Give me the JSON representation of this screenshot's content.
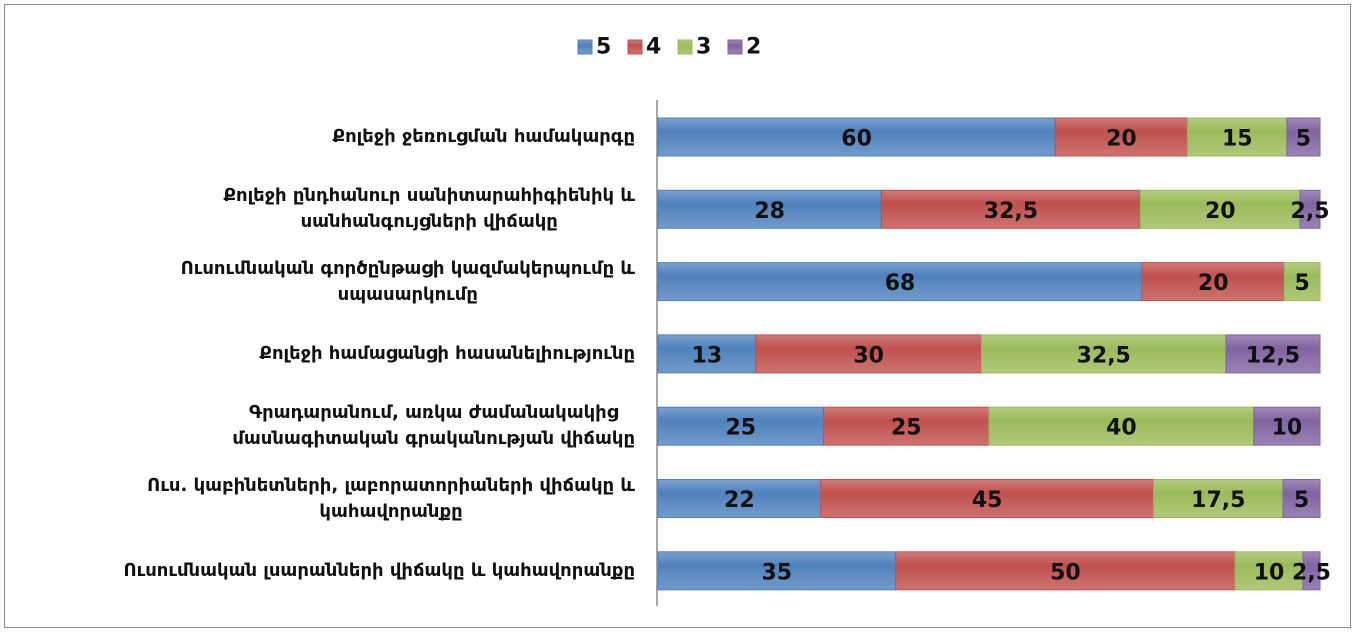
{
  "chart_data": {
    "type": "bar",
    "orientation": "horizontal",
    "stacked": "percent",
    "legend": "top",
    "categories": [
      "Քոլեջի ջեռուցման համակարգը",
      "Քոլեջի ընդհանուր սանիտարահիգիենիկ և\nսանհանգույցների վիճակը",
      "Ուսումնական գործընթացի կազմակերպումը և\nսպասարկումը",
      "Քոլեջի համացանցի հասանելիությունը",
      "Գրադարանում, առկա ժամանակակից\nմասնագիտական գրականության վիճակը",
      "Ուս. կաբինետների, լաբորատորիաների վիճակը և\nկահավորանքը",
      "Ուսումնական լսարանների վիճակը և կահավորանքը"
    ],
    "series": [
      {
        "name": "5",
        "color": "#4f81bd",
        "values": [
          60,
          28,
          68,
          13,
          25,
          22,
          35
        ]
      },
      {
        "name": "4",
        "color": "#c0504d",
        "values": [
          20,
          32.5,
          20,
          30,
          25,
          45,
          50
        ],
        "value_labels": [
          "20",
          "32,5",
          "20",
          "30",
          "25",
          "45",
          "50"
        ]
      },
      {
        "name": "3",
        "color": "#9bbb59",
        "values": [
          15,
          20,
          5,
          32.5,
          40,
          17.5,
          10
        ],
        "value_labels": [
          "15",
          "20",
          "5",
          "32,5",
          "40",
          "17,5",
          "10"
        ]
      },
      {
        "name": "2",
        "color": "#8064a2",
        "values": [
          5,
          2.5,
          null,
          12.5,
          10,
          5,
          2.5
        ],
        "value_labels": [
          "5",
          "2,5",
          null,
          "12,5",
          "10",
          "5",
          "2,5"
        ]
      }
    ]
  }
}
